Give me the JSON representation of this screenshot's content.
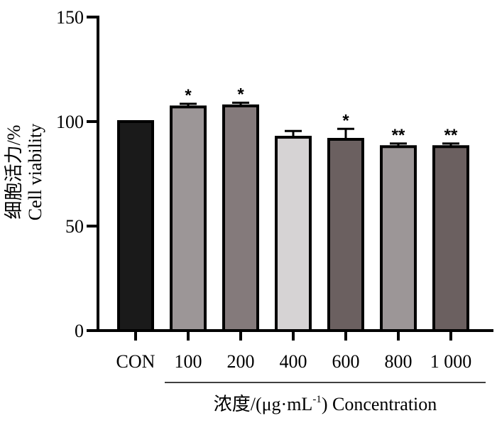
{
  "chart_data": {
    "type": "bar",
    "categories": [
      "CON",
      "100",
      "200",
      "400",
      "600",
      "800",
      "1 000"
    ],
    "values": [
      100,
      107,
      107.5,
      92.5,
      91.5,
      88,
      88
    ],
    "errors": [
      0,
      1.5,
      1.5,
      3,
      5,
      1.5,
      1.5
    ],
    "significance": [
      "",
      "*",
      "*",
      "",
      "*",
      "**",
      "**"
    ],
    "bar_colors": [
      "#1a1a1a",
      "#9c9697",
      "#847a7b",
      "#d6d3d4",
      "#6b6060",
      "#9c9697",
      "#6b6060"
    ],
    "ylabel_cn": "细胞活力/%",
    "ylabel_en": "Cell viability",
    "xlabel_cn": "浓度/(μg·mL",
    "xlabel_sup": "-1",
    "xlabel_en": ") Concentration",
    "ylim": [
      0,
      150
    ],
    "yticks": [
      0,
      50,
      100,
      150
    ]
  }
}
